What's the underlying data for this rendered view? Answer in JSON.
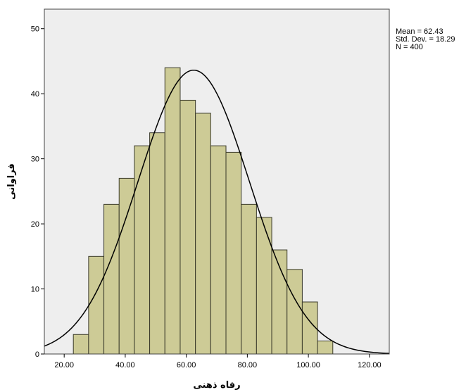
{
  "chart_data": {
    "type": "bar",
    "subtype": "histogram",
    "bins": [
      {
        "start": 23.0,
        "end": 28.0,
        "count": 3
      },
      {
        "start": 28.0,
        "end": 33.0,
        "count": 15
      },
      {
        "start": 33.0,
        "end": 38.0,
        "count": 23
      },
      {
        "start": 38.0,
        "end": 43.0,
        "count": 27
      },
      {
        "start": 43.0,
        "end": 48.0,
        "count": 32
      },
      {
        "start": 48.0,
        "end": 53.0,
        "count": 34
      },
      {
        "start": 53.0,
        "end": 58.0,
        "count": 44
      },
      {
        "start": 58.0,
        "end": 63.0,
        "count": 39
      },
      {
        "start": 63.0,
        "end": 68.0,
        "count": 37
      },
      {
        "start": 68.0,
        "end": 73.0,
        "count": 32
      },
      {
        "start": 73.0,
        "end": 78.0,
        "count": 31
      },
      {
        "start": 78.0,
        "end": 83.0,
        "count": 23
      },
      {
        "start": 83.0,
        "end": 88.0,
        "count": 21
      },
      {
        "start": 88.0,
        "end": 93.0,
        "count": 16
      },
      {
        "start": 93.0,
        "end": 98.0,
        "count": 13
      },
      {
        "start": 98.0,
        "end": 103.0,
        "count": 8
      },
      {
        "start": 103.0,
        "end": 108.0,
        "count": 2
      }
    ],
    "x_ticks": [
      "20.00",
      "40.00",
      "60.00",
      "80.00",
      "100.00",
      "120.00"
    ],
    "y_ticks": [
      "0",
      "10",
      "20",
      "30",
      "40",
      "50"
    ],
    "xlim": [
      13.5,
      126.5
    ],
    "ylim": [
      0,
      53
    ],
    "xlabel": "رفاه ذهنی",
    "ylabel": "فراوانی",
    "normal_curve": {
      "mean": 62.43,
      "std": 18.29,
      "n": 400,
      "bin_width": 5
    },
    "stats": {
      "mean": "Mean = 62.43",
      "std": "Std. Dev. = 18.29",
      "n": "N = 400"
    },
    "grid": false,
    "legend": "none",
    "colors": {
      "bar_fill": "#cdcb96",
      "bar_stroke": "#3a3a2a",
      "plot_bg": "#eeeeee",
      "curve": "#000000"
    }
  }
}
